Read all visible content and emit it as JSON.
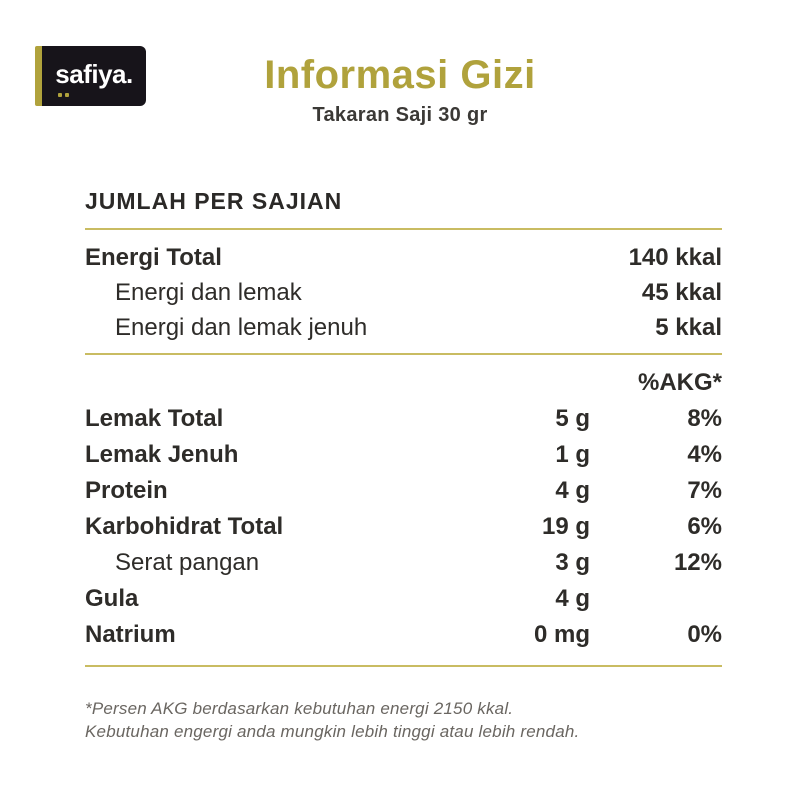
{
  "brand": {
    "logo_text": "safiya."
  },
  "header": {
    "title": "Informasi Gizi",
    "subtitle": "Takaran Saji 30 gr"
  },
  "section_heading": "JUMLAH PER SAJIAN",
  "energy_rows": [
    {
      "label": "Energi Total",
      "value": "140 kkal"
    },
    {
      "label": "Energi dan lemak",
      "value": "45 kkal"
    },
    {
      "label": "Energi dan lemak jenuh",
      "value": "5 kkal"
    }
  ],
  "akg_header": "%AKG*",
  "nutrient_rows": [
    {
      "label": "Lemak Total",
      "amount": "5 g",
      "akg": "8%"
    },
    {
      "label": "Lemak Jenuh",
      "amount": "1 g",
      "akg": "4%"
    },
    {
      "label": "Protein",
      "amount": "4 g",
      "akg": "7%"
    },
    {
      "label": "Karbohidrat Total",
      "amount": "19 g",
      "akg": "6%"
    },
    {
      "label": "Serat pangan",
      "amount": "3 g",
      "akg": "12%"
    },
    {
      "label": "Gula",
      "amount": "4 g",
      "akg": ""
    },
    {
      "label": "Natrium",
      "amount": "0 mg",
      "akg": "0%"
    }
  ],
  "footnote": {
    "line1": "*Persen AKG berdasarkan kebutuhan energi 2150 kkal.",
    "line2": "Kebutuhan engergi anda mungkin lebih tinggi atau lebih rendah."
  },
  "colors": {
    "accent": "#b0a23c",
    "rule": "#c9bc62",
    "text": "#2e2c29",
    "logo_background": "#17141a",
    "footnote_text": "#6a6661"
  }
}
